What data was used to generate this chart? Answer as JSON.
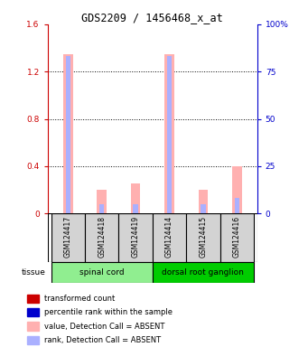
{
  "title": "GDS2209 / 1456468_x_at",
  "samples": [
    "GSM124417",
    "GSM124418",
    "GSM124419",
    "GSM124414",
    "GSM124415",
    "GSM124416"
  ],
  "groups": [
    {
      "name": "spinal cord",
      "indices": [
        0,
        1,
        2
      ],
      "color": "#90ee90"
    },
    {
      "name": "dorsal root ganglion",
      "indices": [
        3,
        4,
        5
      ],
      "color": "#00cc00"
    }
  ],
  "value_absent": [
    1.35,
    0.2,
    0.25,
    1.35,
    0.2,
    0.4
  ],
  "rank_absent_pct": [
    83,
    5,
    5,
    83,
    5,
    8
  ],
  "ylim_left": [
    0,
    1.6
  ],
  "ylim_right": [
    0,
    100
  ],
  "yticks_left": [
    0,
    0.4,
    0.8,
    1.2,
    1.6
  ],
  "yticks_right": [
    0,
    25,
    50,
    75,
    100
  ],
  "ytick_labels_left": [
    "0",
    "0.4",
    "0.8",
    "1.2",
    "1.6"
  ],
  "ytick_labels_right": [
    "0",
    "25",
    "50",
    "75",
    "100%"
  ],
  "left_axis_color": "#cc0000",
  "right_axis_color": "#0000cc",
  "value_absent_color": "#ffb0b0",
  "rank_absent_color": "#aab0ff",
  "legend_items": [
    {
      "label": "transformed count",
      "color": "#cc0000"
    },
    {
      "label": "percentile rank within the sample",
      "color": "#0000cc"
    },
    {
      "label": "value, Detection Call = ABSENT",
      "color": "#ffb0b0"
    },
    {
      "label": "rank, Detection Call = ABSENT",
      "color": "#aab0ff"
    }
  ]
}
